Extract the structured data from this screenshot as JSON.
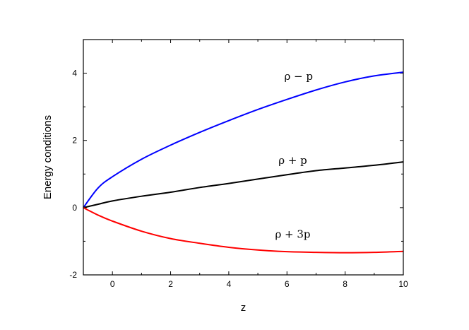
{
  "chart_data": {
    "type": "line",
    "title": "",
    "xlabel": "z",
    "ylabel": "Energy conditions",
    "xlim": [
      -1,
      10
    ],
    "ylim": [
      -2,
      5
    ],
    "xticks": [
      0,
      2,
      4,
      6,
      8,
      10
    ],
    "xtick_labels": [
      "0",
      "2",
      "4",
      "6",
      "8",
      "10"
    ],
    "yticks": [
      -2,
      0,
      2,
      4
    ],
    "ytick_labels": [
      "-2",
      "0",
      "2",
      "4"
    ],
    "grid": false,
    "legend": "none",
    "x": [
      -1,
      -0.5,
      0,
      1,
      2,
      3,
      4,
      5,
      6,
      7,
      8,
      9,
      10
    ],
    "series": [
      {
        "name": "ρ − p",
        "color": "#0000ff",
        "values": [
          0,
          0.58,
          0.92,
          1.44,
          1.86,
          2.24,
          2.59,
          2.92,
          3.22,
          3.5,
          3.74,
          3.92,
          4.03
        ],
        "annotation_at": [
          6.4,
          3.8
        ]
      },
      {
        "name": "ρ + p",
        "color": "#000000",
        "values": [
          0,
          0.1,
          0.2,
          0.34,
          0.46,
          0.6,
          0.72,
          0.85,
          0.98,
          1.1,
          1.18,
          1.26,
          1.36
        ],
        "annotation_at": [
          6.2,
          1.3
        ]
      },
      {
        "name": "ρ + 3p",
        "color": "#ff0000",
        "values": [
          0,
          -0.22,
          -0.4,
          -0.7,
          -0.92,
          -1.06,
          -1.18,
          -1.26,
          -1.31,
          -1.33,
          -1.34,
          -1.33,
          -1.3
        ],
        "annotation_at": [
          6.2,
          -0.9
        ]
      }
    ]
  }
}
